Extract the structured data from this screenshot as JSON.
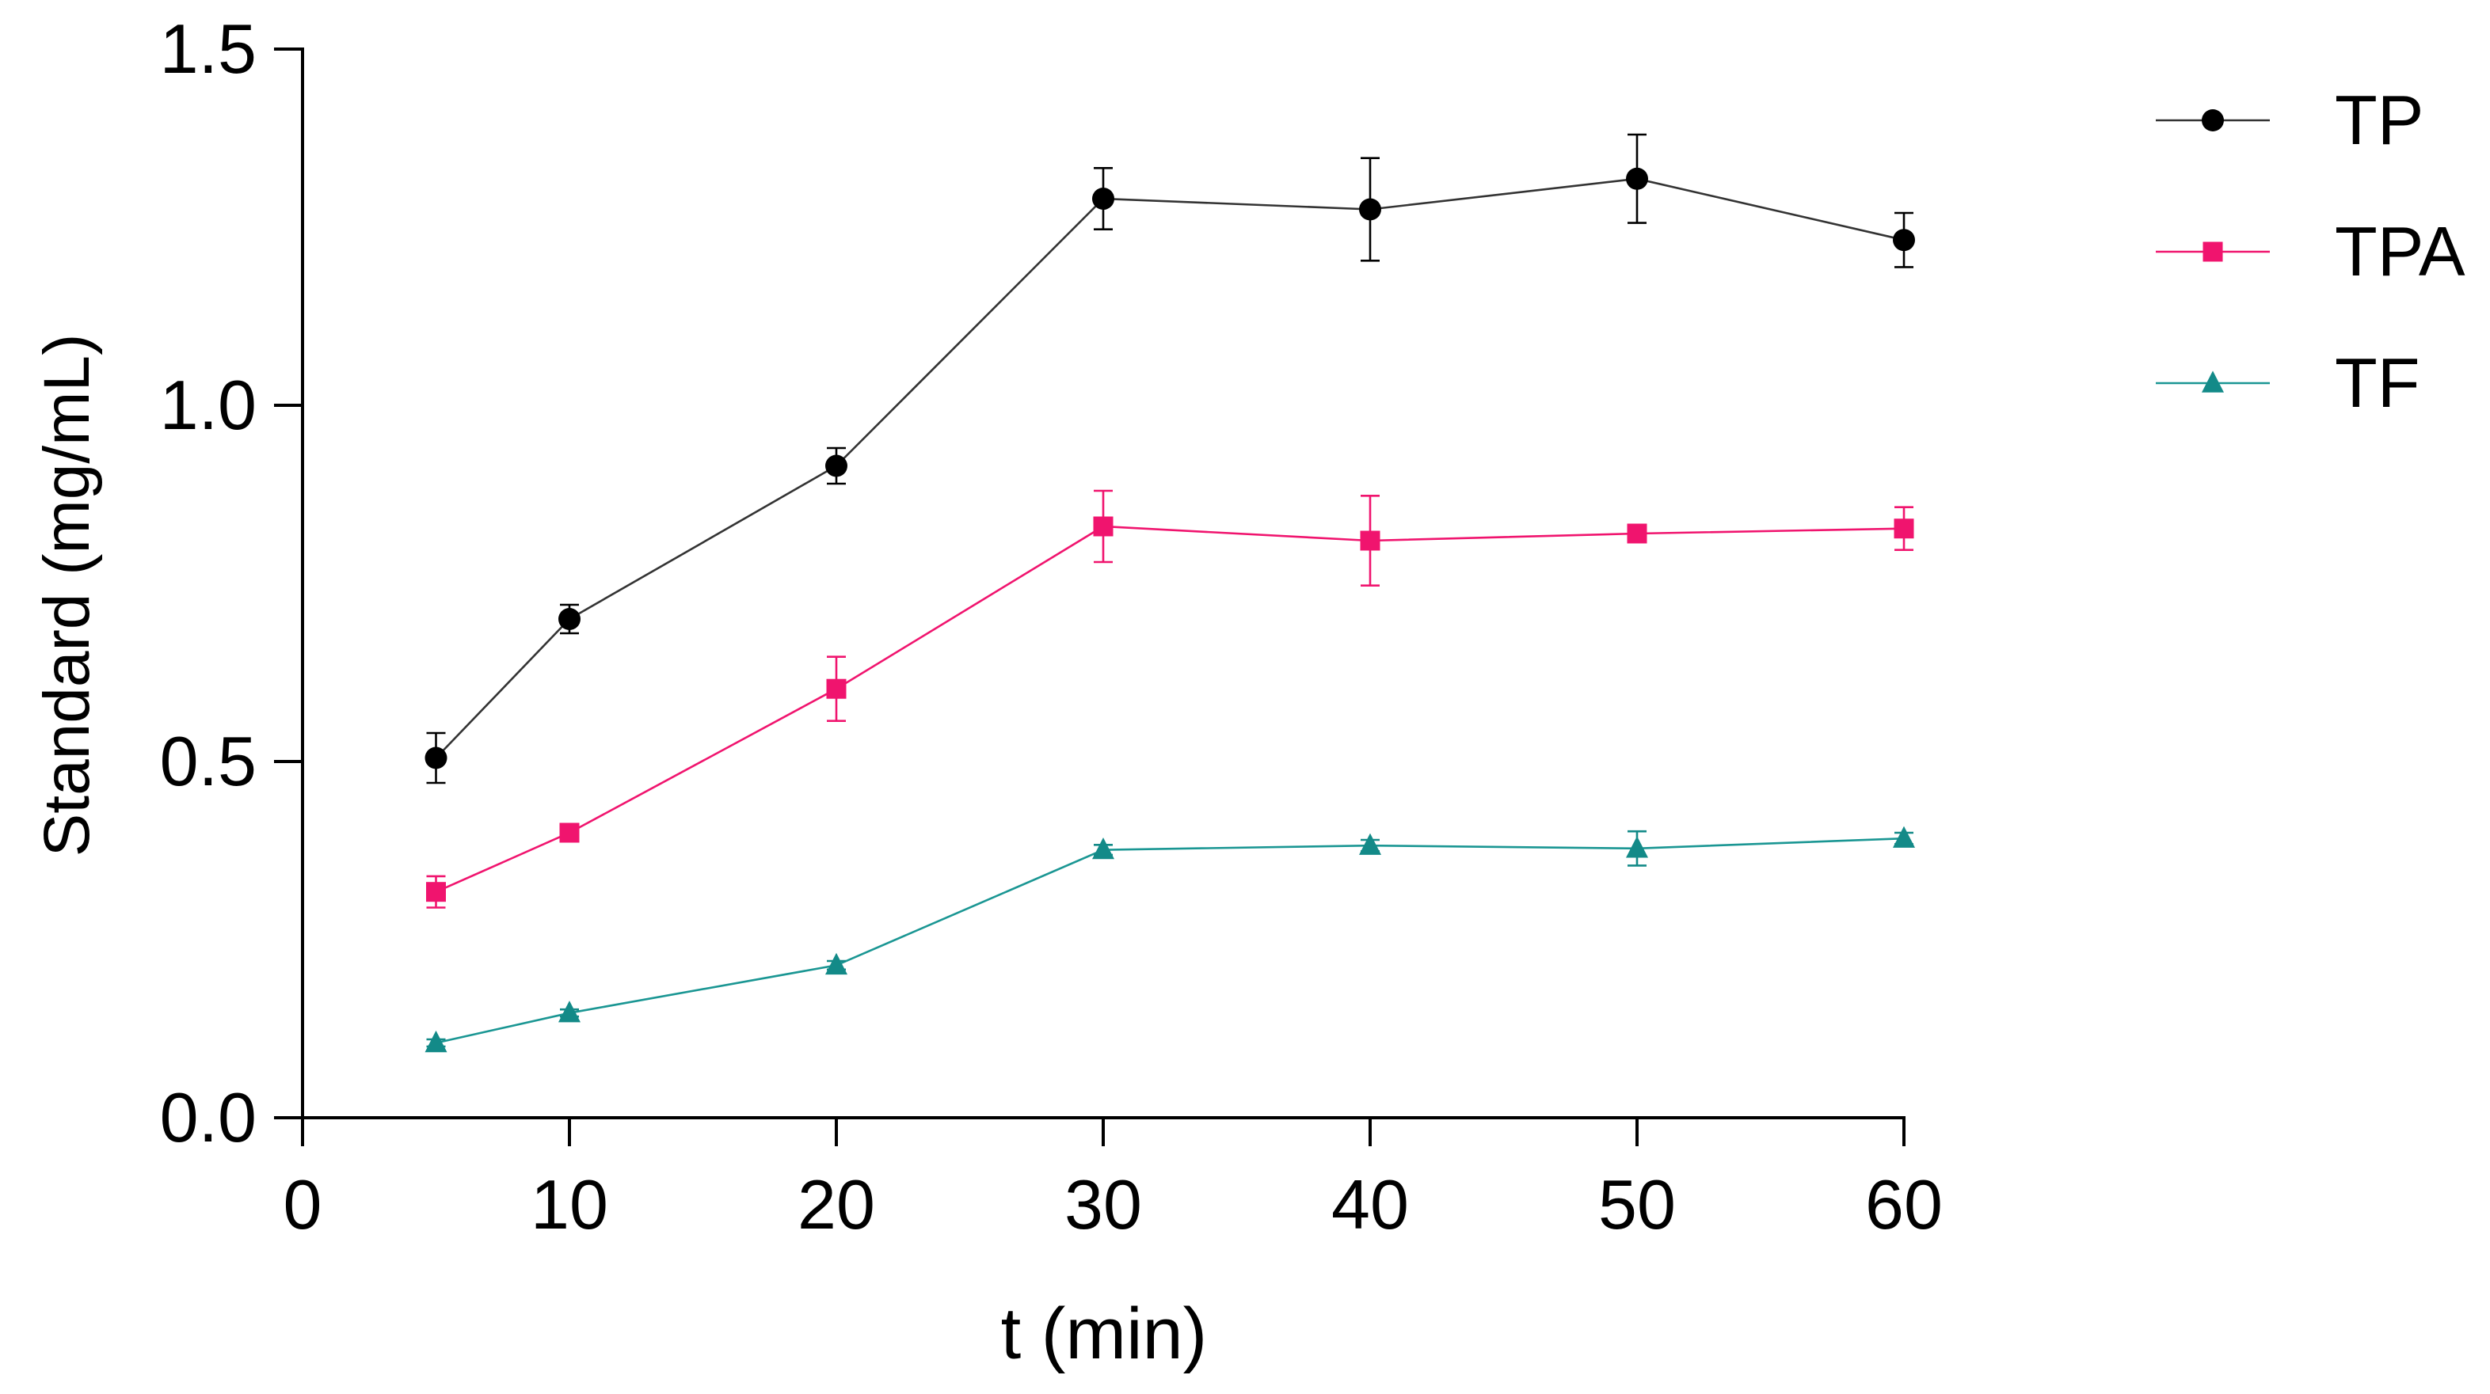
{
  "chart_data": {
    "type": "line",
    "title": "",
    "xlabel": "t (min)",
    "ylabel": "Standard (mg/mL)",
    "xlim": [
      0,
      60
    ],
    "ylim": [
      0,
      1.5
    ],
    "xticks": [
      0,
      10,
      20,
      30,
      40,
      50,
      60
    ],
    "yticks": [
      0.0,
      0.5,
      1.0,
      1.5
    ],
    "xtick_labels": [
      "0",
      "10",
      "20",
      "30",
      "40",
      "50",
      "60"
    ],
    "ytick_labels": [
      "0.0",
      "0.5",
      "1.0",
      "1.5"
    ],
    "grid": false,
    "legend_position": "top-right",
    "x": [
      5,
      10,
      20,
      30,
      40,
      50,
      60
    ],
    "series": [
      {
        "name": "TP",
        "marker": "circle",
        "color": "#000000",
        "line_color": "#333333",
        "values": [
          0.505,
          0.7,
          0.915,
          1.29,
          1.275,
          1.318,
          1.232
        ],
        "errors": [
          0.035,
          0.02,
          0.025,
          0.043,
          0.072,
          0.062,
          0.038
        ]
      },
      {
        "name": "TPA",
        "marker": "square",
        "color": "#f0146e",
        "line_color": "#f0146e",
        "values": [
          0.317,
          0.4,
          0.602,
          0.83,
          0.81,
          0.82,
          0.827
        ],
        "errors": [
          0.022,
          0.012,
          0.045,
          0.05,
          0.063,
          0.008,
          0.03
        ]
      },
      {
        "name": "TF",
        "marker": "triangle",
        "color": "#138a88",
        "line_color": "#1a9693",
        "values": [
          0.105,
          0.147,
          0.214,
          0.376,
          0.382,
          0.378,
          0.392
        ],
        "errors": [
          0.005,
          0.005,
          0.006,
          0.007,
          0.008,
          0.024,
          0.008
        ]
      }
    ]
  }
}
